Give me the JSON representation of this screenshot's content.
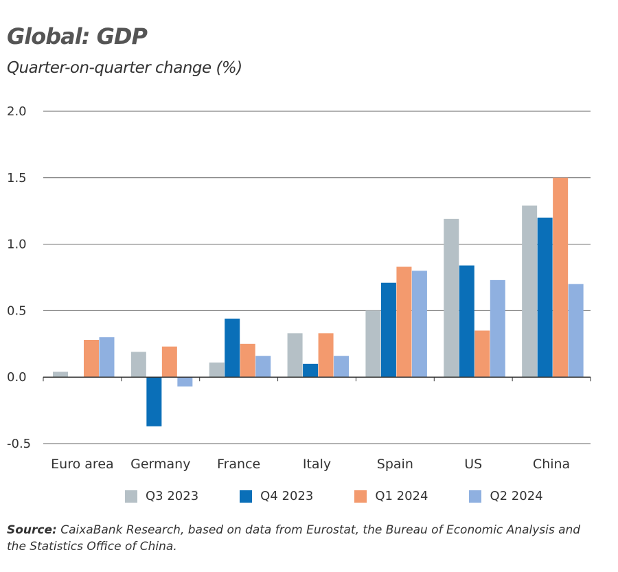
{
  "title": "Global: GDP",
  "subtitle": "Quarter-on-quarter change (%)",
  "source_label": "Source:",
  "source_text": "CaixaBank Research, based on data from Eurostat, the Bureau of Economic Analysis and the Statistics Office of China.",
  "chart_data": {
    "type": "bar",
    "title": "Global: GDP",
    "subtitle": "Quarter-on-quarter change (%)",
    "categories": [
      "Euro area",
      "Germany",
      "France",
      "Italy",
      "Spain",
      "US",
      "China"
    ],
    "series": [
      {
        "name": "Q3 2023",
        "color": "#b5c0c6",
        "values": [
          0.04,
          0.19,
          0.11,
          0.33,
          0.5,
          1.19,
          1.29
        ]
      },
      {
        "name": "Q4 2023",
        "color": "#0a6fb8",
        "values": [
          0.0,
          -0.37,
          0.44,
          0.1,
          0.71,
          0.84,
          1.2
        ]
      },
      {
        "name": "Q1 2024",
        "color": "#f39a6e",
        "values": [
          0.28,
          0.23,
          0.25,
          0.33,
          0.83,
          0.35,
          1.5
        ]
      },
      {
        "name": "Q2 2024",
        "color": "#8fb0e0",
        "values": [
          0.3,
          -0.07,
          0.16,
          0.16,
          0.8,
          0.73,
          0.7
        ]
      }
    ],
    "ylim": [
      -0.5,
      2.0
    ],
    "yticks": [
      "2.0",
      "1.5",
      "1.0",
      "0.5",
      "0.0",
      "-0.5"
    ],
    "grid": true,
    "legend": "bottom"
  }
}
